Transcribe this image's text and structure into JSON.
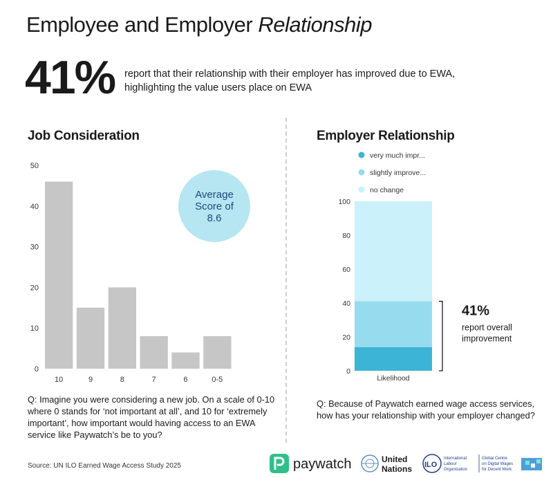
{
  "title_plain": "Employee and Employer ",
  "title_italic": "Relationship",
  "headline": {
    "value": "41%",
    "text": "report that their relationship with their employer has improved due to EWA, highlighting the value users place on EWA"
  },
  "left": {
    "heading": "Job Consideration",
    "bubble": [
      "Average",
      "Score of",
      "8.6"
    ],
    "question": "Q: Imagine you were considering a new job. On a scale of 0-10 where 0 stands for ‘not important at all’, and 10 for ‘extremely important’, how important would having access to an EWA service like Paywatch’s be to you?"
  },
  "right": {
    "heading": "Employer Relationship",
    "annotation_value": "41%",
    "annotation_text": "report overall improvement",
    "question": "Q: Because of Paywatch earned wage access services, how has your relationship with your employer changed?"
  },
  "source": "Source: UN ILO Earned Wage Access Study 2025",
  "logos": {
    "paywatch": "paywatch",
    "un": [
      "United",
      "Nations"
    ],
    "ilo": [
      "International",
      "Labour",
      "Organization"
    ],
    "global_centre": [
      "Global Centre",
      "on Digital Wages",
      "for Decent Work"
    ]
  },
  "colors": {
    "bar_gray": "#c6c6c6",
    "bubble": "#b6e6f2",
    "very_much": "#3cb4d6",
    "slightly": "#96dcee",
    "no_change": "#cbf1fb",
    "paywatch_green": "#2fc08a"
  },
  "chart_data": [
    {
      "type": "bar",
      "title": "Job Consideration",
      "categories": [
        "10",
        "9",
        "8",
        "7",
        "6",
        "0-5"
      ],
      "values": [
        46,
        15,
        20,
        8,
        4,
        8
      ],
      "ylim": [
        0,
        50
      ],
      "yticks": [
        0,
        10,
        20,
        30,
        40,
        50
      ],
      "xlabel": "",
      "ylabel": "",
      "grid": false
    },
    {
      "type": "bar",
      "stacked": true,
      "title": "Employer Relationship",
      "categories": [
        "Likelihood"
      ],
      "series": [
        {
          "name": "very much impr...",
          "values": [
            14
          ],
          "color": "#3cb4d6"
        },
        {
          "name": "slightly improve...",
          "values": [
            27
          ],
          "color": "#96dcee"
        },
        {
          "name": "no change",
          "values": [
            59
          ],
          "color": "#cbf1fb"
        }
      ],
      "ylim": [
        0,
        100
      ],
      "yticks": [
        0,
        20,
        40,
        60,
        80,
        100
      ],
      "legend": "top-left",
      "grid": false
    }
  ]
}
